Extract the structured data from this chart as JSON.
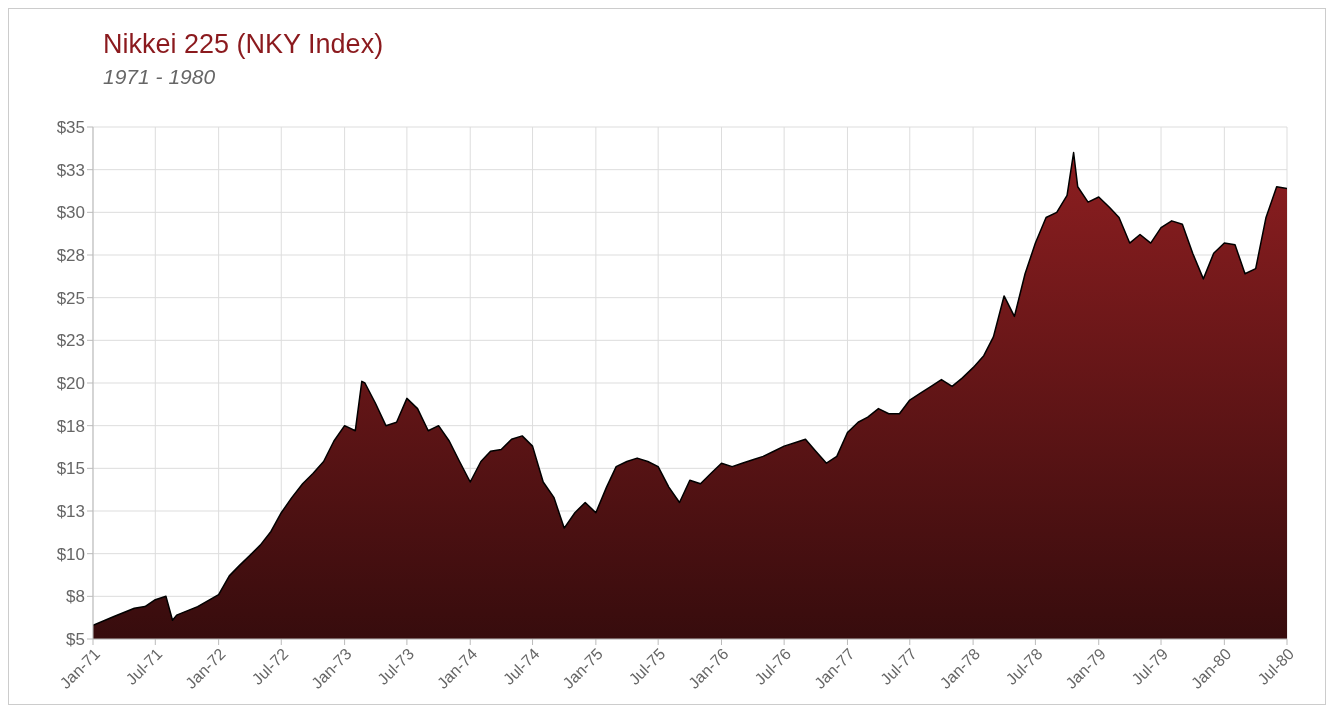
{
  "chart_data": {
    "type": "area",
    "title": "Nikkei 225 (NKY Index)",
    "subtitle": "1971 - 1980",
    "x": [
      "1971-01-01",
      "1971-03-01",
      "1971-05-01",
      "1971-06-01",
      "1971-07-01",
      "1971-08-01",
      "1971-08-20",
      "1971-09-01",
      "1971-11-01",
      "1972-01-01",
      "1972-02-01",
      "1972-03-01",
      "1972-04-01",
      "1972-05-01",
      "1972-06-01",
      "1972-07-01",
      "1972-08-01",
      "1972-09-01",
      "1972-10-01",
      "1972-11-01",
      "1972-12-01",
      "1973-01-01",
      "1973-02-01",
      "1973-02-20",
      "1973-03-01",
      "1973-04-01",
      "1973-05-01",
      "1973-06-01",
      "1973-07-01",
      "1973-08-01",
      "1973-09-01",
      "1973-10-01",
      "1973-11-01",
      "1973-12-01",
      "1974-01-01",
      "1974-02-01",
      "1974-03-01",
      "1974-04-01",
      "1974-05-01",
      "1974-06-01",
      "1974-07-01",
      "1974-08-01",
      "1974-09-01",
      "1974-10-01",
      "1974-11-01",
      "1974-12-01",
      "1975-01-01",
      "1975-02-01",
      "1975-03-01",
      "1975-04-01",
      "1975-05-01",
      "1975-06-01",
      "1975-07-01",
      "1975-08-01",
      "1975-09-01",
      "1975-10-01",
      "1975-11-01",
      "1975-12-01",
      "1976-01-01",
      "1976-02-01",
      "1976-03-01",
      "1976-04-01",
      "1976-05-01",
      "1976-06-01",
      "1976-07-01",
      "1976-08-01",
      "1976-09-01",
      "1976-10-01",
      "1976-11-01",
      "1976-12-01",
      "1977-01-01",
      "1977-02-01",
      "1977-03-01",
      "1977-04-01",
      "1977-05-01",
      "1977-06-01",
      "1977-07-01",
      "1977-08-01",
      "1977-09-01",
      "1977-10-01",
      "1977-11-01",
      "1977-12-01",
      "1978-01-01",
      "1978-02-01",
      "1978-03-01",
      "1978-04-01",
      "1978-05-01",
      "1978-06-01",
      "1978-07-01",
      "1978-08-01",
      "1978-09-01",
      "1978-10-01",
      "1978-10-20",
      "1978-11-01",
      "1978-12-01",
      "1979-01-01",
      "1979-02-01",
      "1979-03-01",
      "1979-04-01",
      "1979-05-01",
      "1979-06-01",
      "1979-07-01",
      "1979-08-01",
      "1979-09-01",
      "1979-10-01",
      "1979-11-01",
      "1979-12-01",
      "1980-01-01",
      "1980-02-01",
      "1980-03-01",
      "1980-04-01",
      "1980-05-01",
      "1980-06-01",
      "1980-07-01"
    ],
    "series": [
      {
        "color": "#7a1a1c",
        "values": [
          5.8,
          6.3,
          6.8,
          6.9,
          7.3,
          7.5,
          6.1,
          6.4,
          6.9,
          7.6,
          8.7,
          9.3,
          9.9,
          10.5,
          11.3,
          12.4,
          13.3,
          14.1,
          14.7,
          15.4,
          16.6,
          17.5,
          17.2,
          20.1,
          20.0,
          18.8,
          17.5,
          17.7,
          19.1,
          18.5,
          17.2,
          17.5,
          16.6,
          15.4,
          14.2,
          15.4,
          16.0,
          16.1,
          16.7,
          16.9,
          16.3,
          14.2,
          13.3,
          11.5,
          12.4,
          13.0,
          12.4,
          13.9,
          15.1,
          15.4,
          15.6,
          15.4,
          15.1,
          13.9,
          13.0,
          14.3,
          14.1,
          14.7,
          15.3,
          15.1,
          15.3,
          15.5,
          15.7,
          16.0,
          16.3,
          16.5,
          16.7,
          16.0,
          15.3,
          15.7,
          17.1,
          17.7,
          18.0,
          18.5,
          18.2,
          18.2,
          19.0,
          19.4,
          19.8,
          20.2,
          19.8,
          20.3,
          20.9,
          21.6,
          22.7,
          25.1,
          23.9,
          26.4,
          28.2,
          29.7,
          30.0,
          31.0,
          33.5,
          31.5,
          30.6,
          30.9,
          30.3,
          29.7,
          28.2,
          28.7,
          28.2,
          29.1,
          29.5,
          29.3,
          27.6,
          26.1,
          27.6,
          28.2,
          28.1,
          26.4,
          26.7,
          29.7,
          31.5,
          31.4
        ]
      }
    ],
    "xlim": [
      "1971-01-01",
      "1980-07-01"
    ],
    "xticks": [
      {
        "value": "1971-01-01",
        "label": "Jan-71"
      },
      {
        "value": "1971-07-01",
        "label": "Jul-71"
      },
      {
        "value": "1972-01-01",
        "label": "Jan-72"
      },
      {
        "value": "1972-07-01",
        "label": "Jul-72"
      },
      {
        "value": "1973-01-01",
        "label": "Jan-73"
      },
      {
        "value": "1973-07-01",
        "label": "Jul-73"
      },
      {
        "value": "1974-01-01",
        "label": "Jan-74"
      },
      {
        "value": "1974-07-01",
        "label": "Jul-74"
      },
      {
        "value": "1975-01-01",
        "label": "Jan-75"
      },
      {
        "value": "1975-07-01",
        "label": "Jul-75"
      },
      {
        "value": "1976-01-01",
        "label": "Jan-76"
      },
      {
        "value": "1976-07-01",
        "label": "Jul-76"
      },
      {
        "value": "1977-01-01",
        "label": "Jan-77"
      },
      {
        "value": "1977-07-01",
        "label": "Jul-77"
      },
      {
        "value": "1978-01-01",
        "label": "Jan-78"
      },
      {
        "value": "1978-07-01",
        "label": "Jul-78"
      },
      {
        "value": "1979-01-01",
        "label": "Jan-79"
      },
      {
        "value": "1979-07-01",
        "label": "Jul-79"
      },
      {
        "value": "1980-01-01",
        "label": "Jan-80"
      },
      {
        "value": "1980-07-01",
        "label": "Jul-80"
      }
    ],
    "ylim": [
      5,
      35
    ],
    "yticks": [
      {
        "value": 5,
        "label": "$5"
      },
      {
        "value": 7.5,
        "label": "$8"
      },
      {
        "value": 10,
        "label": "$10"
      },
      {
        "value": 12.5,
        "label": "$13"
      },
      {
        "value": 15,
        "label": "$15"
      },
      {
        "value": 17.5,
        "label": "$18"
      },
      {
        "value": 20,
        "label": "$20"
      },
      {
        "value": 22.5,
        "label": "$23"
      },
      {
        "value": 25,
        "label": "$25"
      },
      {
        "value": 27.5,
        "label": "$28"
      },
      {
        "value": 30,
        "label": "$30"
      },
      {
        "value": 32.5,
        "label": "$33"
      },
      {
        "value": 35,
        "label": "$35"
      }
    ],
    "grid": true
  }
}
